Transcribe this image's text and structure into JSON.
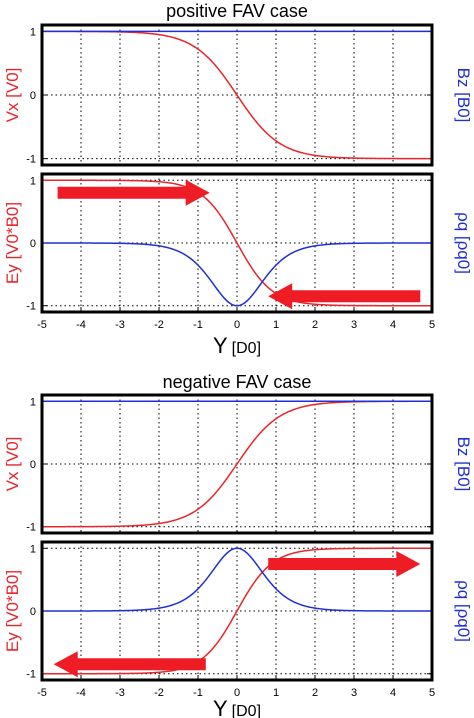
{
  "colors": {
    "red": "#e8252a",
    "blue": "#1f2fd6",
    "arrow": "#ee1c25",
    "grid": "#000000"
  },
  "chart_data": [
    {
      "type": "line",
      "title": "positive FAV case",
      "x_range": [
        -5,
        5
      ],
      "x_ticks": [
        "-5",
        "-4",
        "-3",
        "-2",
        "-1",
        "0",
        "1",
        "2",
        "3",
        "4",
        "5"
      ],
      "x_label": "Y",
      "x_unit": "[D0]",
      "grid": true,
      "panels": [
        {
          "id": "top",
          "ylim": [
            -1.1,
            1.1
          ],
          "y_ticks": [
            "1",
            "0",
            "-1"
          ],
          "left_label": "Vx [V0]",
          "right_label": "Bz [B0]",
          "series": [
            {
              "axis": "left",
              "color": "red",
              "form": "vx",
              "sign": -1
            },
            {
              "axis": "right",
              "color": "blue",
              "form": "const",
              "value": 1
            }
          ]
        },
        {
          "id": "bottom",
          "ylim": [
            -1.1,
            1.1
          ],
          "y_ticks": [
            "1",
            "0",
            "-1"
          ],
          "left_label": "Ey [V0*B0]",
          "right_label": "ρq [ρq0]",
          "series": [
            {
              "axis": "left",
              "color": "red",
              "form": "ey",
              "sign": -1
            },
            {
              "axis": "right",
              "color": "blue",
              "form": "rho",
              "sign": -1
            }
          ],
          "arrows": [
            {
              "direction": "right",
              "x_from": -4.6,
              "x_to": -0.7,
              "y": 0.8
            },
            {
              "direction": "left",
              "x_from": 4.7,
              "x_to": 0.8,
              "y": -0.85
            }
          ]
        }
      ]
    },
    {
      "type": "line",
      "title": "negative FAV case",
      "x_range": [
        -5,
        5
      ],
      "x_ticks": [
        "-5",
        "-4",
        "-3",
        "-2",
        "-1",
        "0",
        "1",
        "2",
        "3",
        "4",
        "5"
      ],
      "x_label": "Y",
      "x_unit": "[D0]",
      "grid": true,
      "panels": [
        {
          "id": "top",
          "ylim": [
            -1.1,
            1.1
          ],
          "y_ticks": [
            "1",
            "0",
            "-1"
          ],
          "left_label": "Vx [V0]",
          "right_label": "Bz [B0]",
          "series": [
            {
              "axis": "left",
              "color": "red",
              "form": "vx",
              "sign": 1
            },
            {
              "axis": "right",
              "color": "blue",
              "form": "const",
              "value": 1
            }
          ]
        },
        {
          "id": "bottom",
          "ylim": [
            -1.1,
            1.1
          ],
          "y_ticks": [
            "1",
            "0",
            "-1"
          ],
          "left_label": "Ey [V0*B0]",
          "right_label": "ρq [ρq0]",
          "series": [
            {
              "axis": "left",
              "color": "red",
              "form": "ey",
              "sign": 1
            },
            {
              "axis": "right",
              "color": "blue",
              "form": "rho",
              "sign": 1
            }
          ],
          "arrows": [
            {
              "direction": "right",
              "x_from": 0.8,
              "x_to": 4.7,
              "y": 0.75
            },
            {
              "direction": "left",
              "x_from": -0.8,
              "x_to": -4.7,
              "y": -0.85
            }
          ]
        }
      ]
    }
  ]
}
